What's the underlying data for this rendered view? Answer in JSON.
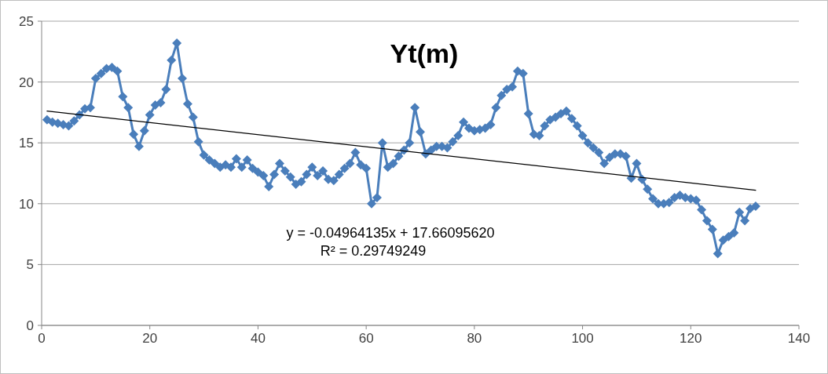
{
  "chart_data": {
    "type": "line",
    "title": "Yt(m)",
    "x": [
      1,
      2,
      3,
      4,
      5,
      6,
      7,
      8,
      9,
      10,
      11,
      12,
      13,
      14,
      15,
      16,
      17,
      18,
      19,
      20,
      21,
      22,
      23,
      24,
      25,
      26,
      27,
      28,
      29,
      30,
      31,
      32,
      33,
      34,
      35,
      36,
      37,
      38,
      39,
      40,
      41,
      42,
      43,
      44,
      45,
      46,
      47,
      48,
      49,
      50,
      51,
      52,
      53,
      54,
      55,
      56,
      57,
      58,
      59,
      60,
      61,
      62,
      63,
      64,
      65,
      66,
      67,
      68,
      69,
      70,
      71,
      72,
      73,
      74,
      75,
      76,
      77,
      78,
      79,
      80,
      81,
      82,
      83,
      84,
      85,
      86,
      87,
      88,
      89,
      90,
      91,
      92,
      93,
      94,
      95,
      96,
      97,
      98,
      99,
      100,
      101,
      102,
      103,
      104,
      105,
      106,
      107,
      108,
      109,
      110,
      111,
      112,
      113,
      114,
      115,
      116,
      117,
      118,
      119,
      120,
      121,
      122,
      123,
      124,
      125,
      126,
      127,
      128,
      129,
      130,
      131,
      132
    ],
    "series": [
      {
        "color": "#4a7ebb",
        "marker": "diamond",
        "values": [
          16.9,
          16.7,
          16.6,
          16.5,
          16.4,
          16.8,
          17.3,
          17.8,
          17.9,
          20.3,
          20.7,
          21.1,
          21.2,
          20.9,
          18.8,
          17.9,
          15.7,
          14.7,
          16.0,
          17.3,
          18.1,
          18.3,
          19.4,
          21.8,
          23.2,
          20.3,
          18.2,
          17.1,
          15.1,
          14.0,
          13.6,
          13.3,
          13.0,
          13.2,
          13.0,
          13.7,
          13.0,
          13.6,
          12.9,
          12.6,
          12.3,
          11.4,
          12.4,
          13.3,
          12.7,
          12.2,
          11.6,
          11.8,
          12.4,
          13.0,
          12.3,
          12.7,
          12.0,
          11.9,
          12.4,
          12.9,
          13.3,
          14.2,
          13.2,
          12.9,
          10.0,
          10.5,
          15.0,
          13.0,
          13.3,
          13.9,
          14.4,
          15.0,
          17.9,
          15.9,
          14.1,
          14.4,
          14.7,
          14.7,
          14.6,
          15.1,
          15.6,
          16.7,
          16.2,
          16.0,
          16.1,
          16.2,
          16.5,
          17.9,
          18.9,
          19.4,
          19.6,
          20.9,
          20.7,
          17.4,
          15.7,
          15.6,
          16.4,
          16.9,
          17.1,
          17.4,
          17.6,
          17.0,
          16.4,
          15.6,
          15.0,
          14.6,
          14.2,
          13.3,
          13.8,
          14.1,
          14.1,
          13.9,
          12.1,
          13.3,
          12.0,
          11.2,
          10.4,
          10.0,
          10.0,
          10.1,
          10.5,
          10.7,
          10.5,
          10.4,
          10.3,
          9.5,
          8.6,
          7.9,
          5.9,
          7.0,
          7.3,
          7.6,
          9.3,
          8.6,
          9.6,
          9.8
        ]
      },
      {
        "color": "#000000",
        "marker": "none",
        "x": [
          1,
          132
        ],
        "values": [
          17.61,
          11.11
        ]
      }
    ],
    "xlim": [
      0,
      140
    ],
    "xticks": [
      0,
      20,
      40,
      60,
      80,
      100,
      120,
      140
    ],
    "ylim": [
      0,
      25
    ],
    "yticks": [
      0,
      5,
      10,
      15,
      20,
      25
    ],
    "grid": "y",
    "annotations": [
      "y = -0.04964135x + 17.66095620",
      "R² = 0.29749249"
    ]
  }
}
